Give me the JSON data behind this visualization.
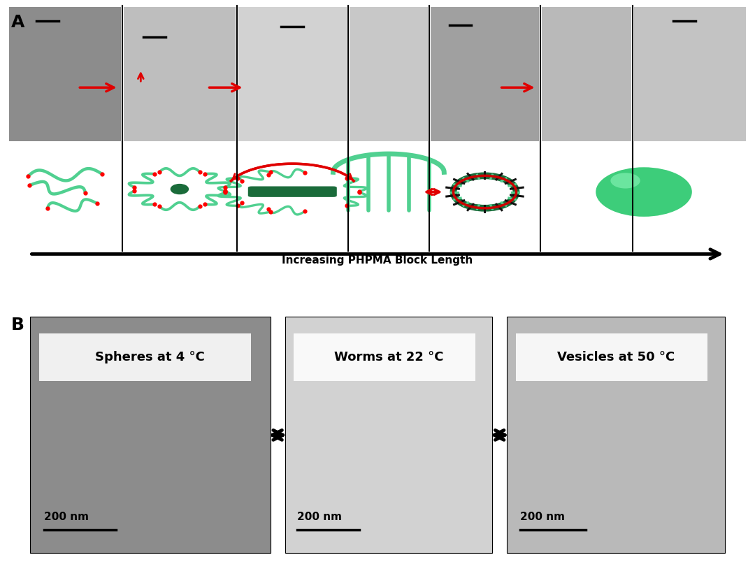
{
  "background_color": "#ffffff",
  "label_A": "A",
  "label_B": "B",
  "arrow_label": "Increasing PHPMA Block Length",
  "panel_B_labels": [
    "Spheres at 4 °C",
    "Worms at 22 °C",
    "Vesicles at 50 °C"
  ],
  "scalebar_label": "200 nm",
  "green_light": "#3dcd7a",
  "green_dark": "#1a6b3a",
  "green_mid": "#50d090",
  "red_arrow": "#e00000",
  "fig_width": 10.8,
  "fig_height": 8.14,
  "col_bounds": [
    0.0,
    0.155,
    0.31,
    0.46,
    0.57,
    0.72,
    0.845,
    1.0
  ],
  "micro_gray": [
    140,
    190,
    210,
    200,
    160,
    185,
    195
  ],
  "b_bounds": [
    0.03,
    0.355,
    0.375,
    0.655,
    0.675,
    0.97
  ],
  "b_colors": [
    140,
    210,
    185
  ]
}
